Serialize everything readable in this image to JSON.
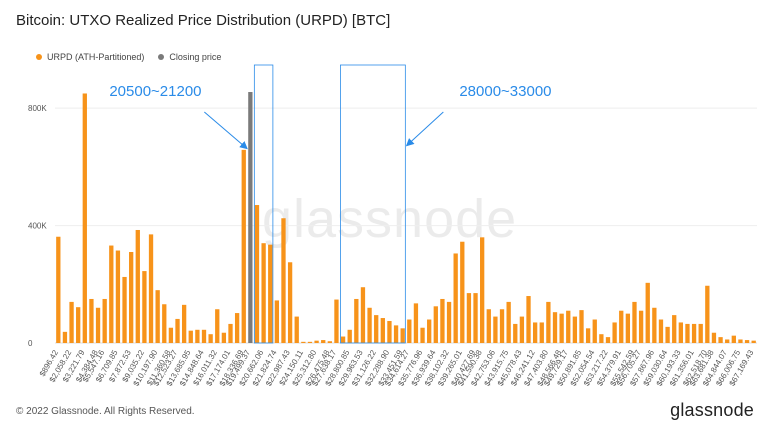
{
  "header": {
    "title": "Bitcoin: UTXO Realized Price Distribution (URPD) [BTC]"
  },
  "footer": {
    "copyright": "© 2022 Glassnode. All Rights Reserved.",
    "logo": "glassnode"
  },
  "watermark": "glassnode",
  "colors": {
    "bar": "#f7931a",
    "closing": "#7a7a7a",
    "annotation": "#2a8be8"
  },
  "chart_data": {
    "type": "bar",
    "title": "Bitcoin: UTXO Realized Price Distribution (URPD) [BTC]",
    "xlabel": "",
    "ylabel": "",
    "ylim": [
      0,
      930000
    ],
    "y_ticks": [
      {
        "value": 0,
        "label": "0"
      },
      {
        "value": 400000,
        "label": "400K"
      },
      {
        "value": 800000,
        "label": "800K"
      }
    ],
    "legend": [
      {
        "name": "URPD (ATH-Partitioned)",
        "color": "#f7931a"
      },
      {
        "name": "Closing price",
        "color": "#7a7a7a"
      }
    ],
    "series": [
      {
        "name": "URPD (ATH-Partitioned)",
        "values": [
          362000,
          38000,
          140000,
          122000,
          850000,
          150000,
          120000,
          150000,
          332000,
          315000,
          225000,
          310000,
          385000,
          245000,
          370000,
          180000,
          132000,
          52000,
          82000,
          130000,
          42000,
          45000,
          45000,
          30000,
          115000,
          35000,
          65000,
          102000,
          658000,
          0,
          470000,
          340000,
          335000,
          145000,
          425000,
          275000,
          90000,
          4000,
          4000,
          8000,
          10000,
          6000,
          148000,
          22000,
          45000,
          150000,
          190000,
          120000,
          95000,
          85000,
          75000,
          60000,
          50000,
          80000,
          135000,
          52000,
          80000,
          125000,
          150000,
          140000,
          305000,
          345000,
          170000,
          170000,
          360000,
          115000,
          90000,
          115000,
          140000,
          65000,
          90000,
          160000,
          70000,
          70000,
          140000,
          105000,
          100000,
          110000,
          90000,
          112000,
          50000,
          80000,
          30000,
          20000,
          70000,
          110000,
          100000,
          140000,
          110000,
          205000,
          120000,
          80000,
          55000,
          95000,
          70000,
          65000,
          65000,
          65000,
          195000,
          35000,
          20000,
          12000,
          25000,
          12000,
          10000,
          8000
        ],
        "color": "#f7931a"
      },
      {
        "name": "Closing price",
        "bar_index": 29,
        "value": 855000,
        "color": "#7a7a7a"
      }
    ],
    "x_tick_labels": [
      "$896.42",
      "$2,058.22",
      "$3,221.79",
      "$4,384.48",
      "$5,547.16",
      "$6,709.85",
      "$7,872.53",
      "$9,035.22",
      "$10,197.90",
      "$11,360.58",
      "$12,523.27",
      "$13,685.95",
      "$14,848.64",
      "$16,011.32",
      "$17,174.01",
      "$18,336.69",
      "$19,499.37",
      "$20,662.06",
      "$21,824.74",
      "$22,987.43",
      "$24,150.11",
      "$25,312.80",
      "$26,475.48",
      "$27,638.17",
      "$28,800.85",
      "$29,963.53",
      "$31,126.22",
      "$32,288.90",
      "$33,451.59",
      "$34,614.27",
      "$35,776.96",
      "$36,939.64",
      "$38,102.32",
      "$39,265.01",
      "$40,427.69",
      "$41,590.38",
      "$42,753.06",
      "$43,915.75",
      "$45,078.43",
      "$46,241.12",
      "$47,403.80",
      "$48,566.48",
      "$49,729.17",
      "$50,891.85",
      "$52,054.54",
      "$53,217.22",
      "$54,379.91",
      "$55,542.59",
      "$56,705.27",
      "$57,867.96",
      "$59,030.64",
      "$60,193.33",
      "$61,356.01",
      "$62,518.70",
      "$63,681.38",
      "$64,844.07",
      "$66,006.75",
      "$67,169.43"
    ],
    "annotations": [
      {
        "label": "20500~21200",
        "start_index": 30,
        "end_index": 32
      },
      {
        "label": "28000~33000",
        "start_index": 43,
        "end_index": 52
      }
    ]
  }
}
